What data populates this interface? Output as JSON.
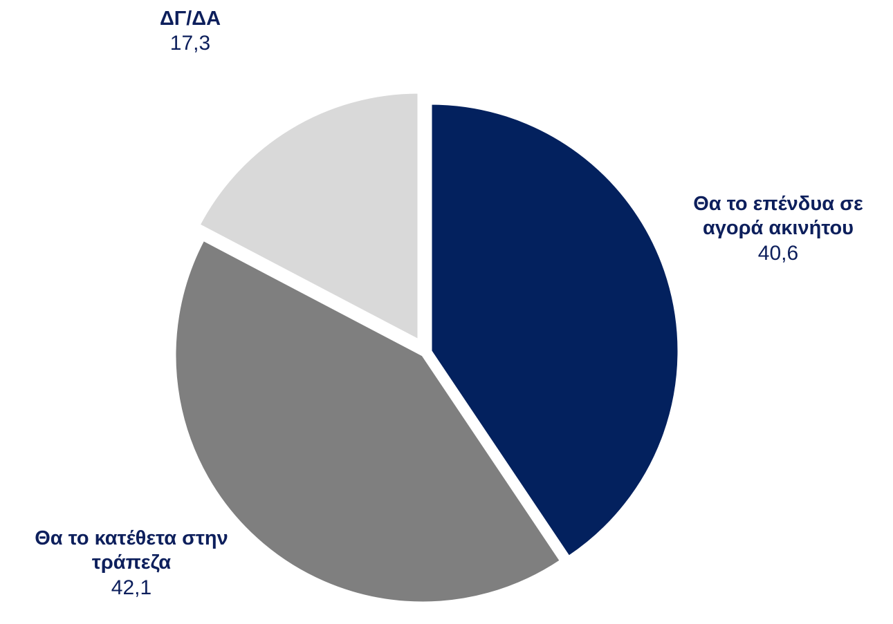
{
  "chart_data": {
    "type": "pie",
    "slices": [
      {
        "label": "Θα το επένδυα σε αγορά ακινήτου",
        "value": 40.6,
        "value_label": "40,6",
        "color": "#03215e"
      },
      {
        "label": "Θα το κατέθετα στην τράπεζα",
        "value": 42.1,
        "value_label": "42,1",
        "color": "#7f7f7f"
      },
      {
        "label": "ΔΓ/ΔΑ",
        "value": 17.3,
        "value_label": "17,3",
        "color": "#d9d9d9"
      }
    ],
    "start_angle": "12 o'clock",
    "direction": "clockwise",
    "exploded": true,
    "legend": "none"
  }
}
